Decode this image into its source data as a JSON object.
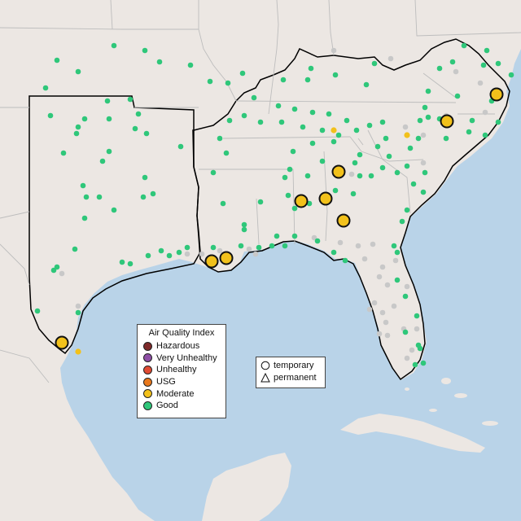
{
  "legend": {
    "title": "Air Quality Index",
    "categories": [
      {
        "label": "Hazardous",
        "color": "#7e2a2a"
      },
      {
        "label": "Very Unhealthy",
        "color": "#8e4fa6"
      },
      {
        "label": "Unhealthy",
        "color": "#e14b33"
      },
      {
        "label": "USG",
        "color": "#e8781c"
      },
      {
        "label": "Moderate",
        "color": "#f2c11b"
      },
      {
        "label": "Good",
        "color": "#2fc77a"
      }
    ],
    "shapes": [
      {
        "label": "temporary",
        "shape": "circle"
      },
      {
        "label": "permanent",
        "shape": "triangle"
      }
    ]
  },
  "map": {
    "water_color": "#b9d3e8",
    "land_color": "#ece7e3",
    "no_data_color": "#c8c8c8",
    "moderate_color": "#f2c11b",
    "good_color": "#2fc77a"
  }
}
